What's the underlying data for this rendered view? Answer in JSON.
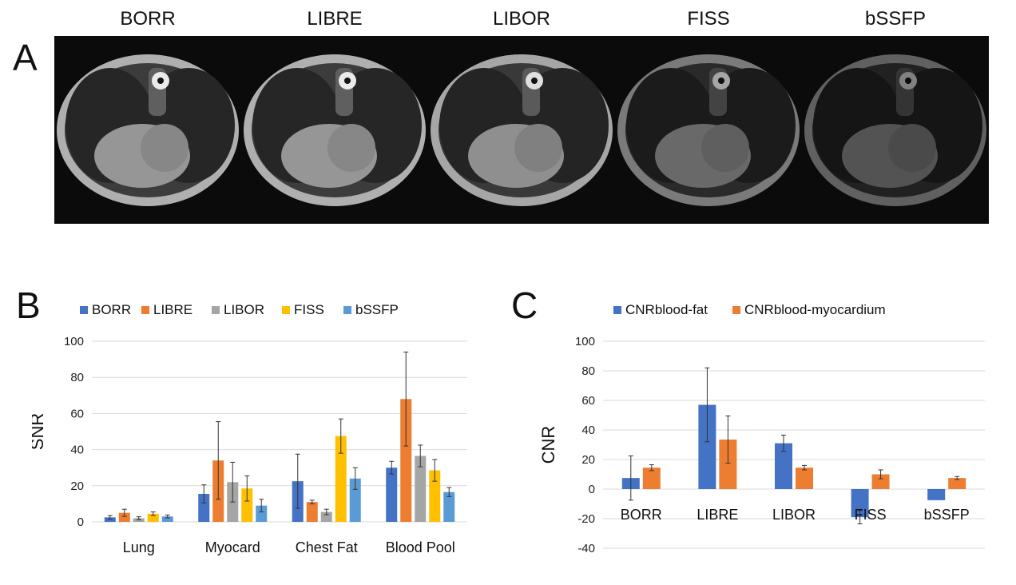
{
  "panels": {
    "a": "A",
    "b": "B",
    "c": "C"
  },
  "images": [
    {
      "title": "BORR",
      "brightness": 1.0
    },
    {
      "title": "LIBRE",
      "brightness": 1.0
    },
    {
      "title": "LIBOR",
      "brightness": 0.95
    },
    {
      "title": "FISS",
      "brightness": 0.7
    },
    {
      "title": "bSSFP",
      "brightness": 0.55
    }
  ],
  "chart_data": [
    {
      "type": "bar",
      "ylabel": "SNR",
      "ylim": [
        0,
        100
      ],
      "yticks": [
        0,
        20,
        40,
        60,
        80,
        100
      ],
      "legend_position": "top",
      "grid": true,
      "categories": [
        "Lung",
        "Myocard",
        "Chest Fat",
        "Blood Pool"
      ],
      "series": [
        {
          "name": "BORR",
          "color": "#4472C4",
          "values": [
            2.5,
            15.5,
            22.5,
            30
          ],
          "errors": [
            1,
            5,
            15,
            3.5
          ]
        },
        {
          "name": "LIBRE",
          "color": "#ED7D31",
          "values": [
            5,
            34,
            11,
            68
          ],
          "errors": [
            2,
            21.5,
            1,
            26
          ]
        },
        {
          "name": "LIBOR",
          "color": "#A5A5A5",
          "values": [
            2,
            22,
            5.5,
            36.5
          ],
          "errors": [
            0.8,
            11,
            1.5,
            6
          ]
        },
        {
          "name": "FISS",
          "color": "#FFC000",
          "values": [
            4.5,
            18.5,
            47.5,
            28.5
          ],
          "errors": [
            1,
            7,
            9.5,
            6
          ]
        },
        {
          "name": "bSSFP",
          "color": "#5B9BD5",
          "values": [
            3,
            9,
            24,
            16.5
          ],
          "errors": [
            0.8,
            3.5,
            6,
            2.5
          ]
        }
      ]
    },
    {
      "type": "bar",
      "ylabel": "CNR",
      "ylim": [
        -40,
        100
      ],
      "yticks": [
        -40,
        -20,
        0,
        20,
        40,
        60,
        80,
        100
      ],
      "legend_position": "top",
      "grid": true,
      "categories": [
        "BORR",
        "LIBRE",
        "LIBOR",
        "FISS",
        "bSSFP"
      ],
      "series": [
        {
          "name": "CNRblood-fat",
          "color": "#4472C4",
          "values": [
            7.5,
            57,
            31,
            -19,
            -7.5
          ],
          "errors": [
            15,
            25,
            5.5,
            4.5,
            0
          ]
        },
        {
          "name": "CNRblood-myocardium",
          "color": "#ED7D31",
          "values": [
            14.5,
            33.5,
            14.5,
            10,
            7.5
          ],
          "errors": [
            2,
            16,
            1.5,
            3,
            1
          ]
        }
      ]
    }
  ]
}
